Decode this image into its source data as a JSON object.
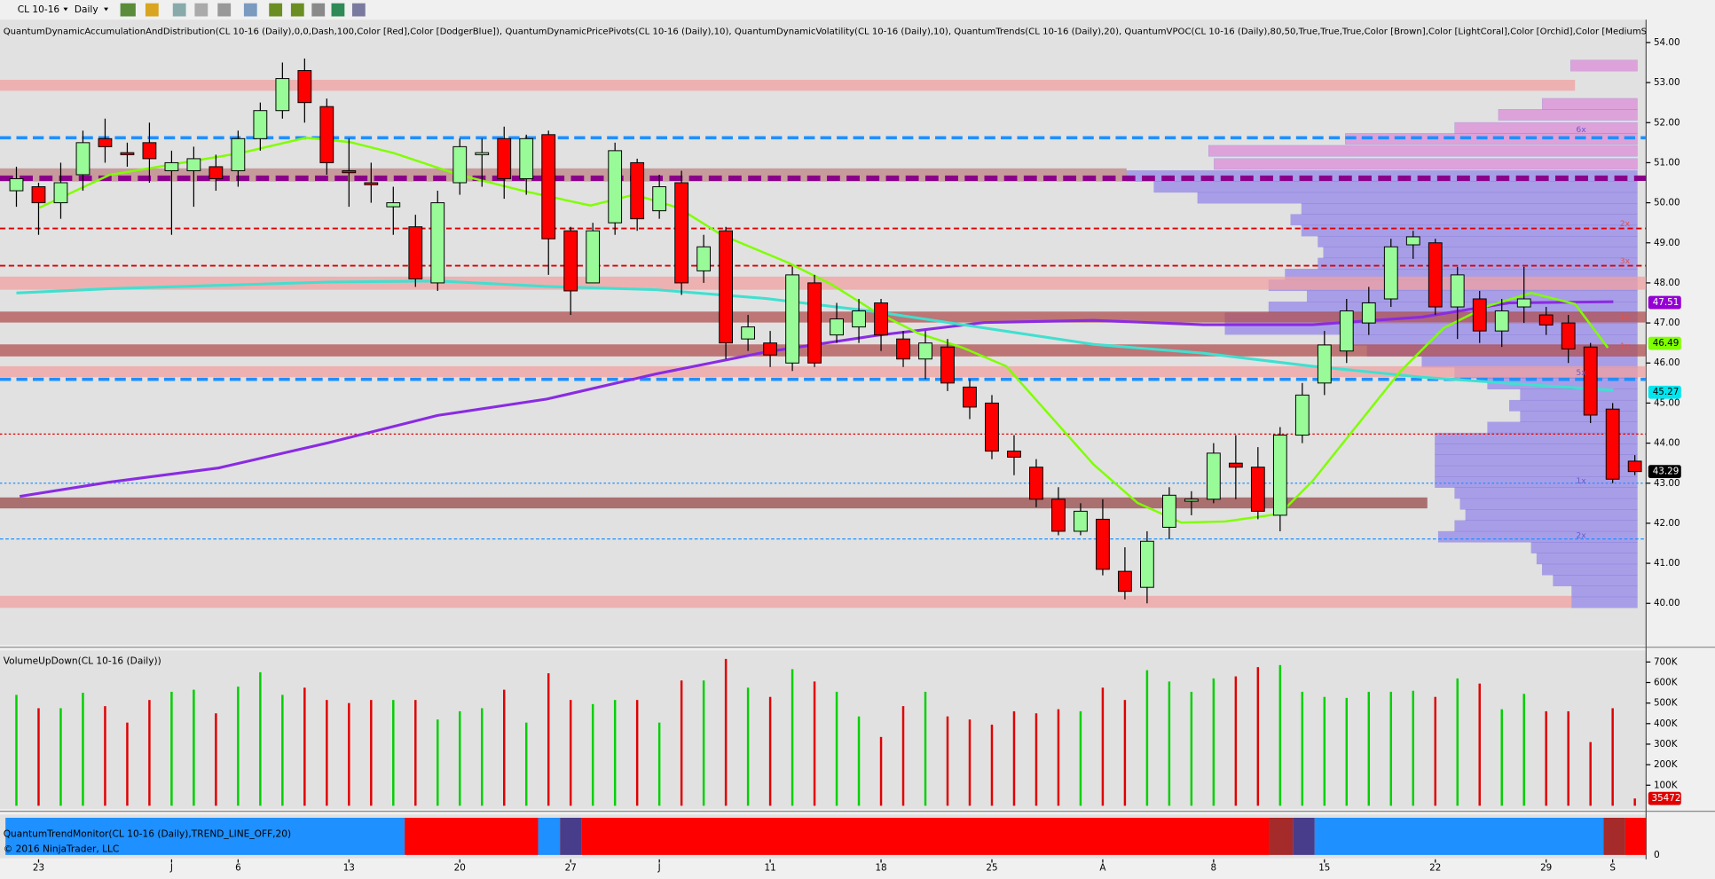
{
  "toolbar": {
    "instrument": "CL 10-16",
    "period": "Daily"
  },
  "chart_data": [
    {
      "type": "candlestick",
      "title": "QuantumDynamicAccumulationAndDistribution(CL 10-16 (Daily),0,0,Dash,100,Color [Red],Color [DodgerBlue]), QuantumDynamicPricePivots(CL 10-16 (Daily),10), QuantumDynamicVolatility(CL 10-16 (Daily),10), QuantumTrends(CL 10-16 (Daily),20), QuantumVPOC(CL 10-16 (Daily),80,50,True,True,True,Color [Brown],Color [LightCoral],Color [Orchid],Color [MediumS",
      "categories": [
        null,
        "23",
        null,
        null,
        null,
        null,
        null,
        "J",
        null,
        null,
        "6",
        null,
        null,
        null,
        null,
        "13",
        null,
        null,
        null,
        null,
        "20",
        null,
        null,
        null,
        null,
        "27",
        null,
        null,
        null,
        "J",
        null,
        null,
        null,
        null,
        "11",
        null,
        null,
        null,
        null,
        "18",
        null,
        null,
        null,
        null,
        "25",
        null,
        null,
        null,
        null,
        "A",
        null,
        null,
        null,
        null,
        "8",
        null,
        null,
        null,
        null,
        "15",
        null,
        null,
        null,
        null,
        "22",
        null,
        null,
        null,
        null,
        "29",
        null,
        null,
        "S",
        null
      ],
      "open": [
        50.3,
        50.4,
        50.0,
        50.7,
        51.6,
        51.25,
        51.5,
        50.8,
        50.8,
        50.9,
        50.8,
        51.6,
        52.3,
        53.3,
        52.4,
        50.8,
        50.5,
        49.9,
        49.4,
        48.0,
        50.5,
        51.2,
        51.6,
        50.6,
        51.7,
        49.3,
        48.0,
        49.5,
        51.0,
        49.8,
        50.5,
        48.3,
        49.3,
        46.6,
        46.5,
        46.0,
        48.0,
        46.7,
        46.9,
        47.5,
        46.6,
        46.1,
        46.4,
        45.4,
        45.0,
        43.8,
        43.4,
        42.6,
        41.8,
        42.1,
        40.8,
        40.4,
        41.9,
        42.55,
        42.6,
        43.5,
        43.4,
        42.2,
        44.2,
        45.5,
        46.3,
        47.0,
        47.6,
        48.95,
        49.0,
        47.4,
        47.6,
        46.8,
        47.4,
        47.2,
        47.0,
        46.4,
        44.85,
        43.55
      ],
      "high": [
        50.9,
        50.5,
        51.0,
        51.8,
        52.1,
        51.5,
        52.0,
        51.3,
        51.4,
        51.2,
        51.8,
        52.5,
        53.5,
        53.6,
        52.6,
        51.6,
        51.0,
        50.4,
        49.7,
        50.3,
        51.6,
        51.6,
        51.9,
        51.7,
        51.8,
        49.4,
        49.5,
        51.5,
        51.1,
        50.7,
        50.8,
        49.2,
        49.4,
        47.2,
        46.8,
        48.4,
        48.2,
        47.5,
        47.6,
        47.6,
        46.8,
        46.8,
        46.6,
        45.6,
        45.2,
        44.2,
        43.6,
        42.9,
        42.5,
        42.6,
        41.4,
        41.8,
        42.9,
        42.8,
        44.0,
        44.2,
        43.9,
        44.4,
        45.5,
        46.8,
        47.6,
        47.9,
        49.1,
        49.3,
        49.1,
        48.4,
        47.8,
        47.6,
        48.4,
        47.4,
        47.2,
        46.5,
        45.0,
        43.7
      ],
      "low": [
        49.9,
        49.2,
        49.6,
        50.3,
        51.0,
        50.9,
        50.5,
        49.2,
        49.9,
        50.3,
        50.4,
        51.3,
        52.1,
        52.0,
        50.7,
        49.9,
        50.0,
        49.2,
        47.9,
        47.8,
        50.2,
        50.4,
        50.1,
        50.2,
        48.2,
        47.2,
        48.0,
        49.2,
        49.3,
        49.6,
        47.7,
        48.0,
        46.1,
        46.3,
        45.9,
        45.8,
        45.9,
        46.5,
        46.5,
        46.3,
        45.9,
        45.6,
        45.3,
        44.6,
        43.6,
        43.2,
        42.4,
        41.7,
        41.7,
        40.7,
        40.1,
        40.0,
        41.6,
        42.2,
        42.5,
        42.6,
        42.1,
        41.8,
        44.0,
        45.2,
        46.0,
        46.7,
        47.4,
        48.6,
        47.2,
        46.6,
        46.5,
        46.4,
        47.0,
        46.7,
        46.0,
        44.5,
        43.0,
        43.2
      ],
      "close": [
        50.6,
        50.0,
        50.5,
        51.5,
        51.4,
        51.2,
        51.1,
        51.0,
        51.1,
        50.6,
        51.6,
        52.3,
        53.1,
        52.5,
        51.0,
        50.75,
        50.45,
        50.0,
        48.1,
        50.0,
        51.4,
        51.25,
        50.6,
        51.6,
        49.1,
        47.8,
        49.3,
        51.3,
        49.6,
        50.4,
        48.0,
        48.9,
        46.5,
        46.9,
        46.2,
        48.2,
        46.0,
        47.1,
        47.3,
        46.7,
        46.1,
        46.5,
        45.5,
        44.9,
        43.8,
        43.65,
        42.6,
        41.8,
        42.3,
        40.85,
        40.3,
        41.55,
        42.7,
        42.6,
        43.75,
        43.4,
        42.3,
        44.2,
        45.2,
        46.45,
        47.3,
        47.5,
        48.9,
        49.15,
        47.4,
        48.2,
        46.8,
        47.3,
        47.6,
        46.95,
        46.35,
        44.7,
        43.1,
        43.29
      ],
      "up_color": "#98fb98",
      "down_color": "#ff0000",
      "ylim": [
        38.96,
        54.57
      ],
      "yticks": [
        {
          "value": 40,
          "label": "40.00"
        },
        {
          "value": 41,
          "label": "41.00"
        },
        {
          "value": 42,
          "label": "42.00"
        },
        {
          "value": 43,
          "label": "43.00"
        },
        {
          "value": 44,
          "label": "44.00"
        },
        {
          "value": 45,
          "label": "45.00"
        },
        {
          "value": 46,
          "label": "46.00"
        },
        {
          "value": 47,
          "label": "47.00"
        },
        {
          "value": 48,
          "label": "48.00"
        },
        {
          "value": 49,
          "label": "49.00"
        },
        {
          "value": 50,
          "label": "50.00"
        },
        {
          "value": 51,
          "label": "51.00"
        },
        {
          "value": 52,
          "label": "52.00"
        },
        {
          "value": 53,
          "label": "53.00"
        },
        {
          "value": 54,
          "label": "54.00"
        }
      ],
      "price_markers": [
        {
          "value": 47.51,
          "color": "#9400d3"
        },
        {
          "value": 46.49,
          "color": "#7fff00"
        },
        {
          "value": 45.27,
          "color": "#00e5ee"
        },
        {
          "value": 43.29,
          "color": "#000000"
        }
      ],
      "profile_labels": [
        "6x",
        "2x",
        "3x",
        "1x",
        "1x",
        "5x",
        "1x",
        "2x"
      ]
    },
    {
      "type": "bar",
      "title": "VolumeUpDown(CL 10-16 (Daily))",
      "values": [
        540000,
        475000,
        475000,
        550000,
        485000,
        405000,
        515000,
        555000,
        565000,
        450000,
        580000,
        650000,
        540000,
        575000,
        515000,
        500000,
        515000,
        515000,
        515000,
        420000,
        460000,
        475000,
        565000,
        405000,
        645000,
        515000,
        495000,
        515000,
        515000,
        405000,
        610000,
        610000,
        715000,
        575000,
        530000,
        665000,
        605000,
        555000,
        435000,
        335000,
        485000,
        555000,
        435000,
        420000,
        395000,
        460000,
        450000,
        470000,
        460000,
        575000,
        515000,
        660000,
        605000,
        555000,
        620000,
        630000,
        675000,
        685000,
        555000,
        530000,
        525000,
        555000,
        555000,
        560000,
        530000,
        620000,
        595000,
        470000,
        545000,
        460000,
        460000,
        310000,
        475000,
        35472
      ],
      "ylim": [
        0,
        740000
      ],
      "yticks": [
        {
          "value": 100000,
          "label": "100K"
        },
        {
          "value": 200000,
          "label": "200K"
        },
        {
          "value": 300000,
          "label": "300K"
        },
        {
          "value": 400000,
          "label": "400K"
        },
        {
          "value": 500000,
          "label": "500K"
        },
        {
          "value": 600000,
          "label": "600K"
        },
        {
          "value": 700000,
          "label": "700K"
        }
      ]
    }
  ],
  "trend_monitor": {
    "title": "QuantumTrendMonitor(CL 10-16 (Daily),TREND_LINE_OFF,20)",
    "tick": "0"
  },
  "copyright": "© 2016 NinjaTrader, LLC"
}
